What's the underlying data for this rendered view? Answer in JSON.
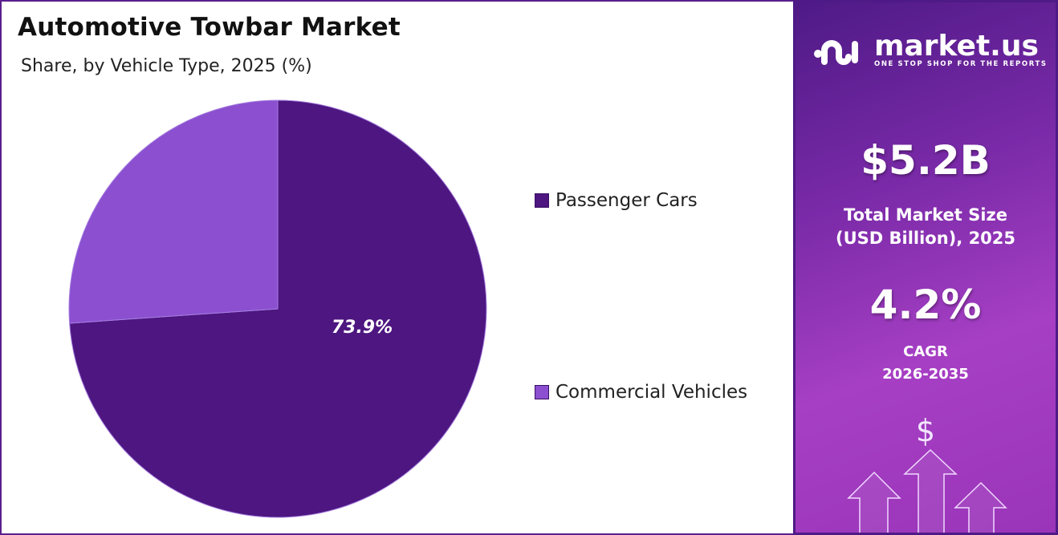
{
  "title": "Automotive Towbar Market",
  "subtitle": "Share, by Vehicle Type, 2025 (%)",
  "chart_data": {
    "type": "pie",
    "title": "Automotive Towbar Market",
    "subtitle": "Share, by Vehicle Type, 2025 (%)",
    "categories": [
      "Passenger Cars",
      "Commercial Vehicles"
    ],
    "values": [
      73.9,
      26.1
    ],
    "data_labels": [
      "73.9%",
      ""
    ],
    "colors": [
      "#4d1680",
      "#8b4fd0"
    ],
    "legend_placement": "right",
    "start_angle": "top, clockwise"
  },
  "panel": {
    "brand": "market.us",
    "tagline": "ONE STOP SHOP FOR THE REPORTS",
    "market_size_value": "$5.2B",
    "market_size_label_line1": "Total Market Size",
    "market_size_label_line2": "(USD Billion), 2025",
    "cagr_value": "4.2%",
    "cagr_label": "CAGR",
    "cagr_period": "2026-2035",
    "dollar_symbol": "$"
  }
}
